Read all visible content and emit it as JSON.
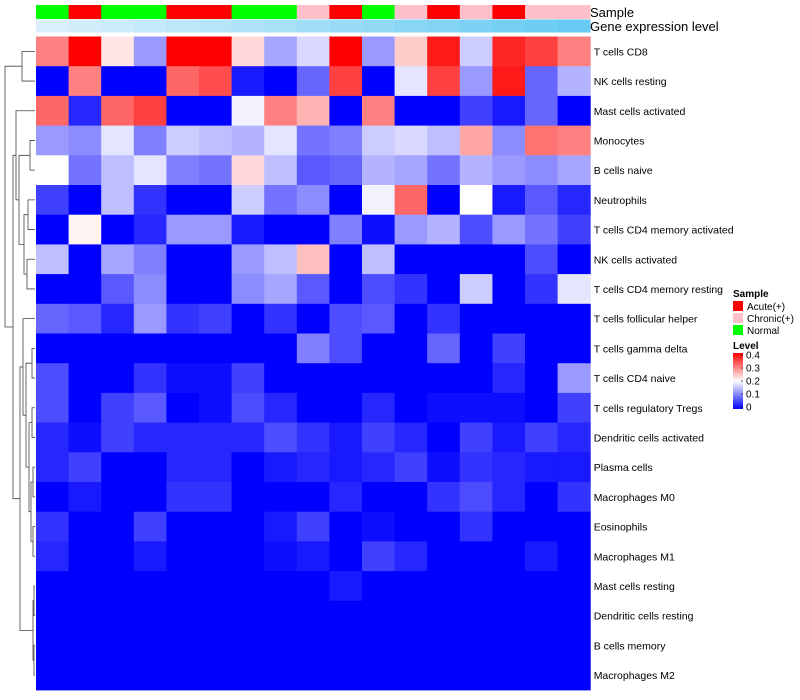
{
  "chart_data": {
    "type": "heatmap",
    "annotation_tracks": [
      "Sample",
      "Gene expression level"
    ],
    "rows": [
      "T cells CD8",
      "NK cells resting",
      "Mast cells activated",
      "Monocytes",
      "B cells naive",
      "Neutrophils",
      "T cells CD4 memory activated",
      "NK cells activated",
      "T cells CD4 memory resting",
      "T cells follicular helper",
      "T cells gamma delta",
      "T cells CD4 naive",
      "T cells regulatory  Tregs",
      "Dendritic cells activated",
      "Plasma cells",
      "Macrophages M0",
      "Eosinophils",
      "Macrophages M1",
      "Mast cells resting",
      "Dendritic cells resting",
      "B cells memory",
      "Macrophages M2"
    ],
    "sample_groups": [
      "Normal",
      "Acute(+)",
      "Normal",
      "Normal",
      "Acute(+)",
      "Acute(+)",
      "Normal",
      "Normal",
      "Chronic(+)",
      "Acute(+)",
      "Normal",
      "Chronic(+)",
      "Acute(+)",
      "Chronic(+)",
      "Acute(+)",
      "Chronic(+)",
      "Chronic(+)"
    ],
    "expression_level": [
      0.05,
      0.1,
      0.15,
      0.2,
      0.25,
      0.3,
      0.35,
      0.4,
      0.45,
      0.5,
      0.55,
      0.6,
      0.65,
      0.7,
      0.75,
      0.8,
      0.85
    ],
    "values": [
      [
        0.3,
        0.4,
        0.22,
        0.12,
        0.4,
        0.4,
        0.23,
        0.13,
        0.17,
        0.4,
        0.12,
        0.24,
        0.38,
        0.16,
        0.37,
        0.35,
        0.3
      ],
      [
        0.0,
        0.3,
        0.0,
        0.0,
        0.32,
        0.34,
        0.02,
        0.0,
        0.08,
        0.35,
        0.0,
        0.18,
        0.35,
        0.12,
        0.38,
        0.08,
        0.14
      ],
      [
        0.32,
        0.03,
        0.32,
        0.35,
        0.0,
        0.0,
        0.19,
        0.3,
        0.26,
        0.0,
        0.3,
        0.0,
        0.0,
        0.05,
        0.02,
        0.08,
        0.0
      ],
      [
        0.12,
        0.11,
        0.18,
        0.1,
        0.16,
        0.15,
        0.14,
        0.18,
        0.09,
        0.1,
        0.16,
        0.17,
        0.15,
        0.27,
        0.11,
        0.31,
        0.3
      ],
      [
        0.2,
        0.09,
        0.15,
        0.18,
        0.1,
        0.09,
        0.23,
        0.15,
        0.07,
        0.08,
        0.14,
        0.13,
        0.09,
        0.14,
        0.12,
        0.11,
        0.13
      ],
      [
        0.05,
        0.0,
        0.15,
        0.04,
        0.0,
        0.0,
        0.16,
        0.09,
        0.11,
        0.0,
        0.19,
        0.32,
        0.0,
        0.2,
        0.02,
        0.07,
        0.03
      ],
      [
        0.0,
        0.21,
        0.0,
        0.03,
        0.12,
        0.12,
        0.02,
        0.0,
        0.0,
        0.1,
        0.01,
        0.12,
        0.14,
        0.06,
        0.12,
        0.09,
        0.05
      ],
      [
        0.15,
        0.0,
        0.13,
        0.1,
        0.0,
        0.0,
        0.12,
        0.15,
        0.25,
        0.0,
        0.15,
        0.0,
        0.0,
        0.0,
        0.0,
        0.06,
        0.0
      ],
      [
        0.0,
        0.0,
        0.07,
        0.11,
        0.0,
        0.0,
        0.11,
        0.13,
        0.07,
        0.0,
        0.06,
        0.04,
        0.0,
        0.16,
        0.0,
        0.04,
        0.18
      ],
      [
        0.08,
        0.07,
        0.03,
        0.12,
        0.04,
        0.05,
        0.0,
        0.04,
        0.0,
        0.06,
        0.07,
        0.0,
        0.04,
        0.0,
        0.0,
        0.0,
        0.0
      ],
      [
        0.0,
        0.0,
        0.0,
        0.0,
        0.0,
        0.0,
        0.0,
        0.0,
        0.1,
        0.06,
        0.0,
        0.0,
        0.08,
        0.0,
        0.05,
        0.0,
        0.0
      ],
      [
        0.06,
        0.0,
        0.0,
        0.04,
        0.01,
        0.01,
        0.05,
        0.0,
        0.0,
        0.0,
        0.0,
        0.0,
        0.0,
        0.0,
        0.03,
        0.0,
        0.12
      ],
      [
        0.06,
        0.0,
        0.05,
        0.07,
        0.0,
        0.01,
        0.06,
        0.03,
        0.0,
        0.0,
        0.03,
        0.0,
        0.01,
        0.01,
        0.01,
        0.0,
        0.05
      ],
      [
        0.03,
        0.01,
        0.05,
        0.03,
        0.03,
        0.03,
        0.03,
        0.06,
        0.04,
        0.02,
        0.05,
        0.03,
        0.0,
        0.05,
        0.02,
        0.05,
        0.03
      ],
      [
        0.03,
        0.05,
        0.0,
        0.0,
        0.03,
        0.03,
        0.0,
        0.02,
        0.03,
        0.02,
        0.03,
        0.05,
        0.01,
        0.04,
        0.03,
        0.02,
        0.02
      ],
      [
        0.0,
        0.02,
        0.0,
        0.0,
        0.04,
        0.04,
        0.0,
        0.0,
        0.0,
        0.03,
        0.0,
        0.0,
        0.04,
        0.06,
        0.03,
        0.0,
        0.04
      ],
      [
        0.04,
        0.0,
        0.0,
        0.05,
        0.0,
        0.0,
        0.0,
        0.02,
        0.05,
        0.0,
        0.01,
        0.0,
        0.0,
        0.04,
        0.0,
        0.0,
        0.0
      ],
      [
        0.03,
        0.0,
        0.0,
        0.02,
        0.0,
        0.0,
        0.0,
        0.01,
        0.02,
        0.0,
        0.05,
        0.03,
        0.0,
        0.0,
        0.0,
        0.02,
        0.0
      ],
      [
        0.0,
        0.0,
        0.0,
        0.0,
        0.0,
        0.0,
        0.0,
        0.0,
        0.0,
        0.02,
        0.0,
        0.0,
        0.0,
        0.0,
        0.0,
        0.0,
        0.0
      ],
      [
        0.0,
        0.0,
        0.0,
        0.0,
        0.0,
        0.0,
        0.0,
        0.0,
        0.0,
        0.0,
        0.0,
        0.0,
        0.0,
        0.0,
        0.0,
        0.0,
        0.0
      ],
      [
        0.0,
        0.0,
        0.0,
        0.0,
        0.0,
        0.0,
        0.0,
        0.0,
        0.0,
        0.0,
        0.0,
        0.0,
        0.0,
        0.0,
        0.0,
        0.0,
        0.0
      ],
      [
        0.0,
        0.0,
        0.0,
        0.0,
        0.0,
        0.0,
        0.0,
        0.0,
        0.0,
        0.0,
        0.0,
        0.0,
        0.0,
        0.0,
        0.0,
        0.0,
        0.0
      ]
    ],
    "color_scale": {
      "min": 0,
      "mid": 0.2,
      "max": 0.4,
      "low": "#0000ff",
      "midcolor": "#ffffff",
      "high": "#ff0000"
    },
    "legends": {
      "sample": {
        "title": "Sample",
        "items": [
          {
            "label": "Acute(+)",
            "color": "#ff0000"
          },
          {
            "label": "Chronic(+)",
            "color": "#ffc0cb"
          },
          {
            "label": "Normal",
            "color": "#00ff00"
          }
        ]
      },
      "level": {
        "title": "Level",
        "ticks": [
          "0.4",
          "0.3",
          "0.2",
          "0.1",
          "0"
        ]
      }
    },
    "dendrogram": "left-side row clustering tree"
  }
}
